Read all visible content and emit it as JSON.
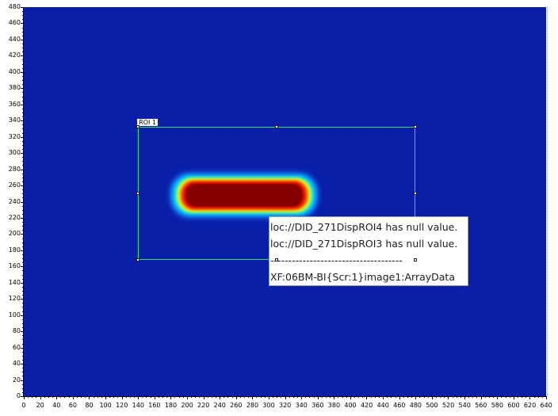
{
  "image_view": {
    "pv_name": "XF:06BM-BI{Scr:1}image1:ArrayData",
    "colormap": "jet",
    "background_color": "#0a1fa8"
  },
  "roi": {
    "label": "ROI 1",
    "color": "#35e06a",
    "x_range": [
      140,
      480
    ],
    "y_range": [
      168,
      332
    ]
  },
  "axes": {
    "x_ticks": [
      "0",
      "20",
      "40",
      "60",
      "80",
      "100",
      "120",
      "140",
      "160",
      "180",
      "200",
      "220",
      "240",
      "260",
      "280",
      "300",
      "320",
      "340",
      "360",
      "380",
      "400",
      "420",
      "440",
      "460",
      "480",
      "500",
      "520",
      "540",
      "560",
      "580",
      "600",
      "620",
      "640"
    ],
    "y_ticks": [
      "0",
      "20",
      "40",
      "60",
      "80",
      "100",
      "120",
      "140",
      "160",
      "180",
      "200",
      "220",
      "240",
      "260",
      "280",
      "300",
      "320",
      "340",
      "360",
      "380",
      "400",
      "420",
      "440",
      "460",
      "480"
    ],
    "x_max": 640,
    "y_max": 480
  },
  "tooltip": {
    "lines": [
      "loc://DID_271DispROI4 has null value.",
      "loc://DID_271DispROI3 has null value.",
      "-------------------------------------",
      "XF:06BM-BI{Scr:1}image1:ArrayData"
    ]
  }
}
